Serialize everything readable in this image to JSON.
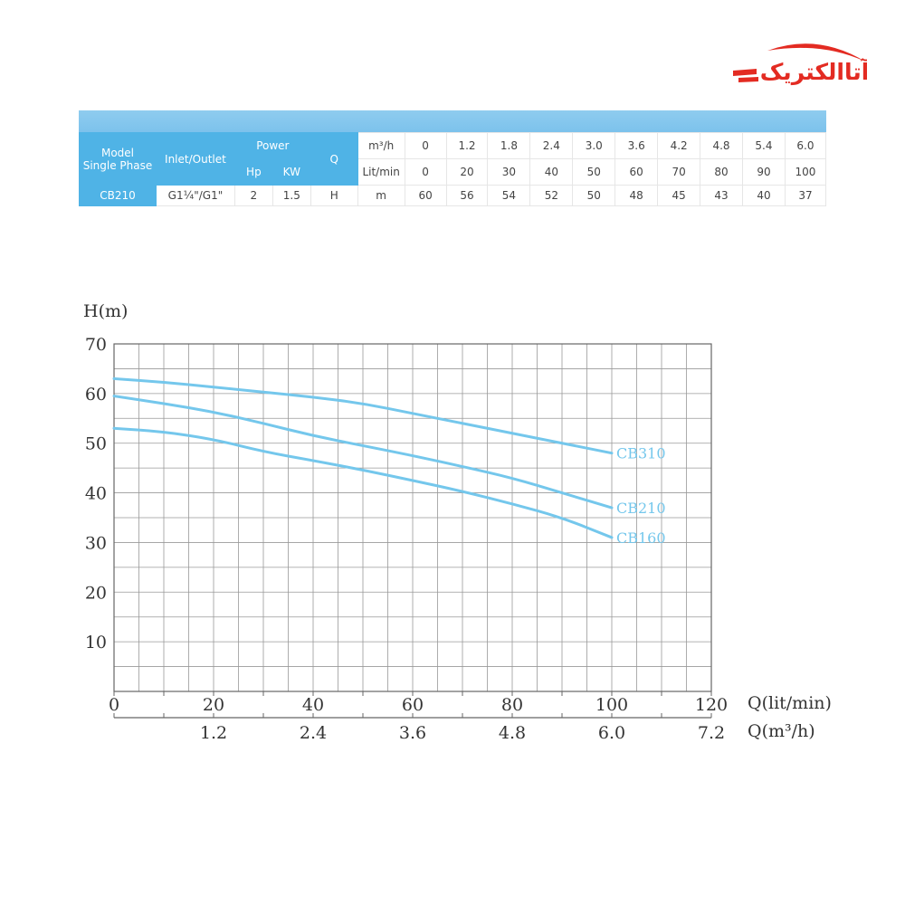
{
  "brand": {
    "logo_text": "آتاالکتریک",
    "color": "#e32b22"
  },
  "spec_table": {
    "header": {
      "model": "Model",
      "single_phase": "Single Phase",
      "inlet_outlet": "Inlet/Outlet",
      "power": "Power",
      "hp": "Hp",
      "kw": "KW",
      "q": "Q",
      "unit_m3h": "m³/h",
      "unit_litmin": "Lit/min"
    },
    "m3h_values": [
      "0",
      "1.2",
      "1.8",
      "2.4",
      "3.0",
      "3.6",
      "4.2",
      "4.8",
      "5.4",
      "6.0"
    ],
    "litmin_values": [
      "0",
      "20",
      "30",
      "40",
      "50",
      "60",
      "70",
      "80",
      "90",
      "100"
    ],
    "row": {
      "model": "CB210",
      "inlet_outlet": "G1¼\"/G1\"",
      "hp": "2",
      "kw": "1.5",
      "h": "H",
      "unit": "m",
      "heads": [
        "60",
        "56",
        "54",
        "52",
        "50",
        "48",
        "45",
        "43",
        "40",
        "37"
      ]
    },
    "header_color": "#4fb3e6",
    "band_color": "#8bcbef"
  },
  "chart_data": {
    "type": "line",
    "ylabel": "H(m)",
    "xlabel": "Q(lit/min)",
    "xlabel2": "Q(m³/h)",
    "xlim": [
      0,
      120
    ],
    "ylim": [
      0,
      70
    ],
    "xticks": [
      "0",
      "20",
      "40",
      "60",
      "80",
      "100",
      "120"
    ],
    "xticks2": [
      "1.2",
      "2.4",
      "3.6",
      "4.8",
      "6.0",
      "7.2"
    ],
    "yticks": [
      "10",
      "20",
      "30",
      "40",
      "50",
      "60",
      "70"
    ],
    "grid": true,
    "line_color": "#74c7ec",
    "series": [
      {
        "name": "CB310",
        "x": [
          0,
          10,
          20,
          30,
          40,
          50,
          60,
          70,
          80,
          90,
          100
        ],
        "y": [
          63,
          62.3,
          61.3,
          60.3,
          59.3,
          58,
          56,
          54,
          52,
          50,
          48
        ]
      },
      {
        "name": "CB210",
        "x": [
          0,
          10,
          20,
          30,
          40,
          50,
          60,
          70,
          80,
          90,
          100
        ],
        "y": [
          59.5,
          58,
          56.3,
          54,
          51.5,
          49.5,
          47.5,
          45.3,
          43,
          40,
          37
        ]
      },
      {
        "name": "CB160",
        "x": [
          0,
          10,
          20,
          30,
          40,
          50,
          60,
          70,
          80,
          90,
          100
        ],
        "y": [
          53,
          52.3,
          50.8,
          48.3,
          46.5,
          44.6,
          42.5,
          40.3,
          37.8,
          35,
          31
        ]
      }
    ]
  }
}
